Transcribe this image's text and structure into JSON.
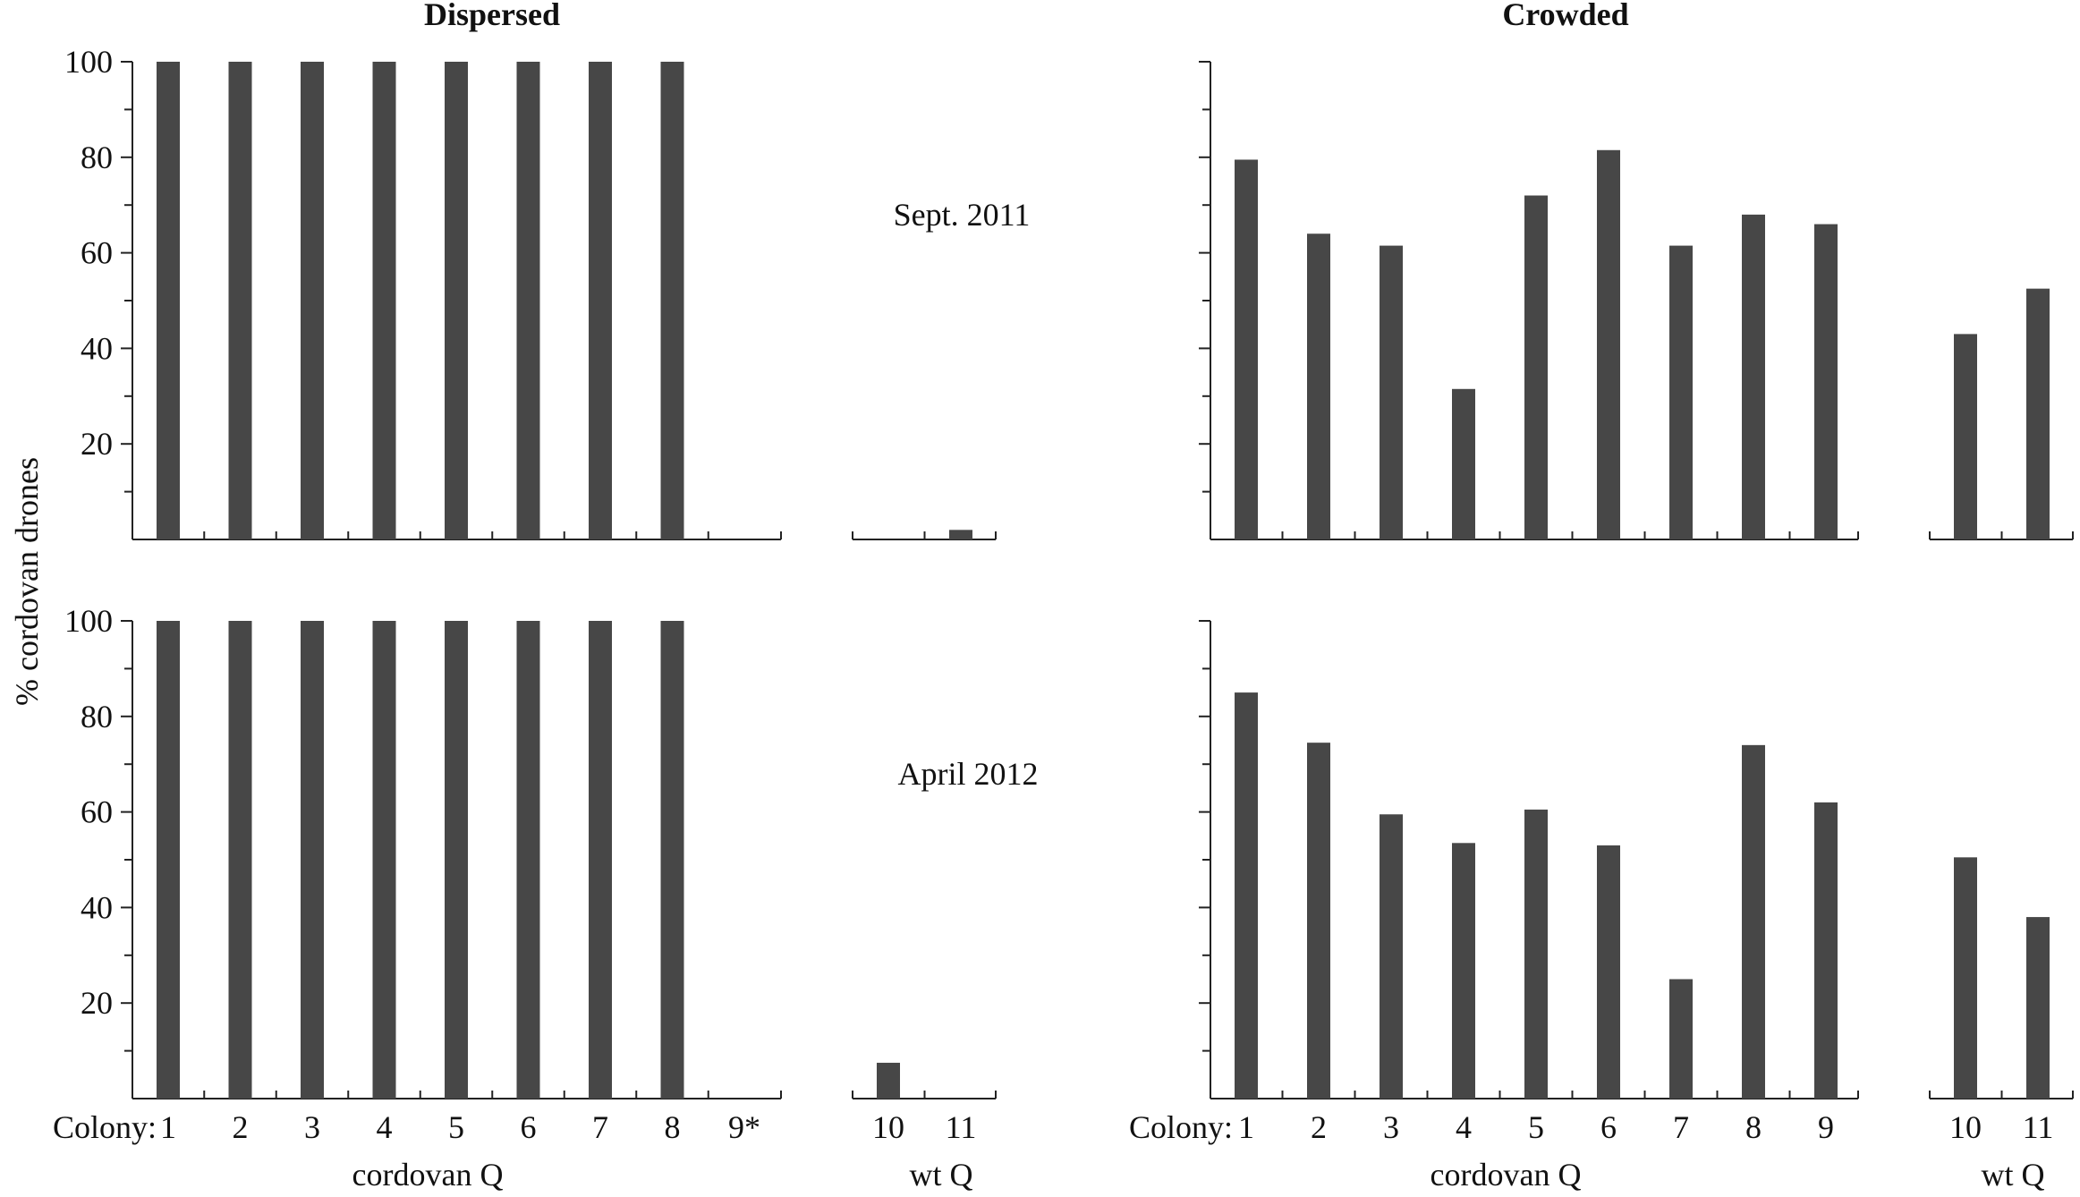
{
  "chart_data": [
    {
      "type": "bar",
      "treatment": "Dispersed",
      "period": "Sept. 2011",
      "ylabel": "% cordovan drones",
      "ylim": [
        0,
        100
      ],
      "yticks": [
        20,
        40,
        60,
        80,
        100
      ],
      "groups": [
        {
          "name": "cordovan Q",
          "categories": [
            "1",
            "2",
            "3",
            "4",
            "5",
            "6",
            "7",
            "8",
            "9*"
          ],
          "values": [
            100,
            100,
            100,
            100,
            100,
            100,
            100,
            100,
            0
          ]
        },
        {
          "name": "wt Q",
          "categories": [
            "10",
            "11"
          ],
          "values": [
            0,
            2
          ]
        }
      ]
    },
    {
      "type": "bar",
      "treatment": "Crowded",
      "period": "Sept. 2011",
      "ylim": [
        0,
        100
      ],
      "groups": [
        {
          "name": "cordovan Q",
          "categories": [
            "1",
            "2",
            "3",
            "4",
            "5",
            "6",
            "7",
            "8",
            "9"
          ],
          "values": [
            79.5,
            64,
            61.5,
            31.5,
            72,
            81.5,
            61.5,
            68,
            66
          ]
        },
        {
          "name": "wt Q",
          "categories": [
            "10",
            "11"
          ],
          "values": [
            43,
            52.5
          ]
        }
      ]
    },
    {
      "type": "bar",
      "treatment": "Dispersed",
      "period": "April 2012",
      "ylabel": "% cordovan drones",
      "ylim": [
        0,
        100
      ],
      "yticks": [
        20,
        40,
        60,
        80,
        100
      ],
      "groups": [
        {
          "name": "cordovan Q",
          "categories": [
            "1",
            "2",
            "3",
            "4",
            "5",
            "6",
            "7",
            "8",
            "9*"
          ],
          "values": [
            100,
            100,
            100,
            100,
            100,
            100,
            100,
            100,
            0
          ]
        },
        {
          "name": "wt Q",
          "categories": [
            "10",
            "11"
          ],
          "values": [
            7.5,
            0
          ]
        }
      ]
    },
    {
      "type": "bar",
      "treatment": "Crowded",
      "period": "April 2012",
      "ylim": [
        0,
        100
      ],
      "groups": [
        {
          "name": "cordovan Q",
          "categories": [
            "1",
            "2",
            "3",
            "4",
            "5",
            "6",
            "7",
            "8",
            "9"
          ],
          "values": [
            85,
            74.5,
            59.5,
            53.5,
            60.5,
            53,
            25,
            74,
            62
          ]
        },
        {
          "name": "wt Q",
          "categories": [
            "10",
            "11"
          ],
          "values": [
            50.5,
            38
          ]
        }
      ]
    }
  ],
  "labels": {
    "dispersed_title": "Dispersed",
    "crowded_title": "Crowded",
    "ylabel": "% cordovan drones",
    "period_top": "Sept. 2011",
    "period_bottom": "April 2012",
    "colony_prefix": "Colony:",
    "group_cordovan": "cordovan Q",
    "group_wt": "wt Q"
  },
  "colors": {
    "bar": "#474747",
    "axis": "#222222"
  }
}
